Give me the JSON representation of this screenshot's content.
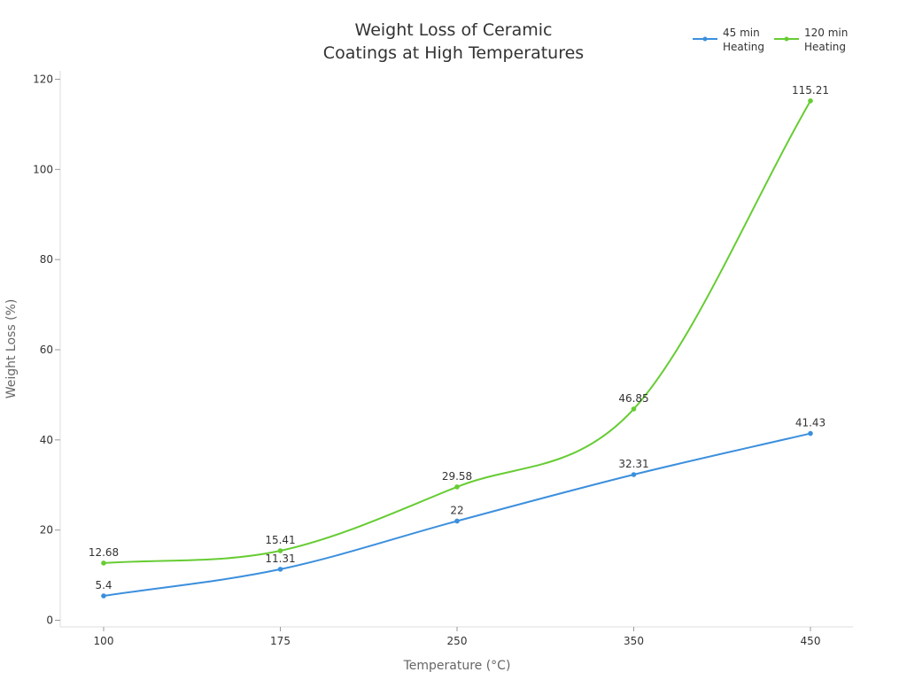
{
  "chart_data": {
    "type": "line",
    "title_lines": [
      "Weight Loss of Ceramic",
      "Coatings at High Temperatures"
    ],
    "xlabel": "Temperature (°C)",
    "ylabel": "Weight Loss (%)",
    "categories": [
      "100",
      "175",
      "250",
      "350",
      "450"
    ],
    "ylim": [
      0,
      120
    ],
    "yticks": [
      0,
      20,
      40,
      60,
      80,
      100,
      120
    ],
    "grid": false,
    "legend_position": "top-right",
    "series": [
      {
        "name_lines": [
          "45 min",
          "Heating"
        ],
        "color": "#3b8fdd",
        "values": [
          5.4,
          11.31,
          22,
          32.31,
          41.43
        ],
        "labels": [
          "5.4",
          "11.31",
          "22",
          "32.31",
          "41.43"
        ]
      },
      {
        "name_lines": [
          "120 min",
          "Heating"
        ],
        "color": "#66cc33",
        "values": [
          12.68,
          15.41,
          29.58,
          46.85,
          115.21
        ],
        "labels": [
          "12.68",
          "15.41",
          "29.58",
          "46.85",
          "115.21"
        ]
      }
    ]
  }
}
